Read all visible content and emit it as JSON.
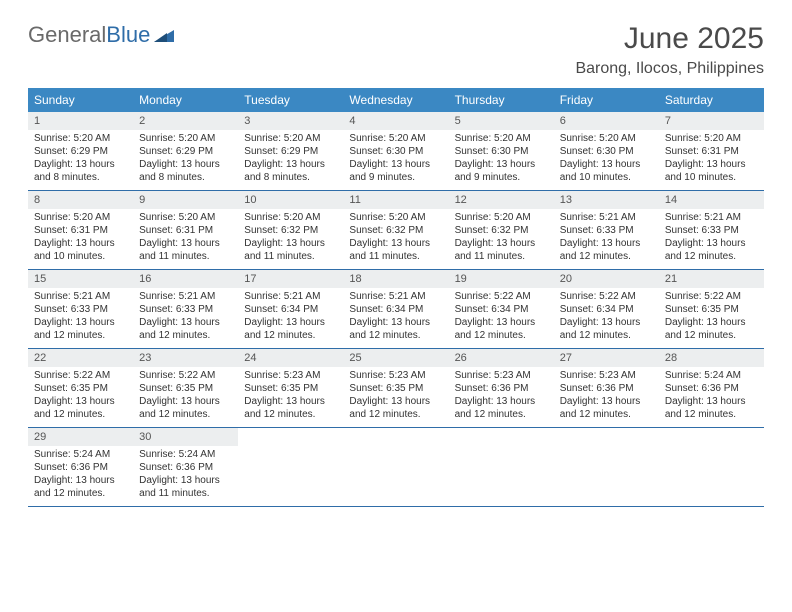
{
  "logo": {
    "text_gray": "General",
    "text_blue": "Blue"
  },
  "title": {
    "month": "June 2025",
    "location": "Barong, Ilocos, Philippines"
  },
  "colors": {
    "header_bg": "#3b88c3",
    "header_text": "#ffffff",
    "daynum_bg": "#eceeef",
    "rule": "#2f6da8",
    "body_text": "#333333"
  },
  "day_names": [
    "Sunday",
    "Monday",
    "Tuesday",
    "Wednesday",
    "Thursday",
    "Friday",
    "Saturday"
  ],
  "days": [
    {
      "n": "1",
      "sr": "Sunrise: 5:20 AM",
      "ss": "Sunset: 6:29 PM",
      "d1": "Daylight: 13 hours",
      "d2": "and 8 minutes."
    },
    {
      "n": "2",
      "sr": "Sunrise: 5:20 AM",
      "ss": "Sunset: 6:29 PM",
      "d1": "Daylight: 13 hours",
      "d2": "and 8 minutes."
    },
    {
      "n": "3",
      "sr": "Sunrise: 5:20 AM",
      "ss": "Sunset: 6:29 PM",
      "d1": "Daylight: 13 hours",
      "d2": "and 8 minutes."
    },
    {
      "n": "4",
      "sr": "Sunrise: 5:20 AM",
      "ss": "Sunset: 6:30 PM",
      "d1": "Daylight: 13 hours",
      "d2": "and 9 minutes."
    },
    {
      "n": "5",
      "sr": "Sunrise: 5:20 AM",
      "ss": "Sunset: 6:30 PM",
      "d1": "Daylight: 13 hours",
      "d2": "and 9 minutes."
    },
    {
      "n": "6",
      "sr": "Sunrise: 5:20 AM",
      "ss": "Sunset: 6:30 PM",
      "d1": "Daylight: 13 hours",
      "d2": "and 10 minutes."
    },
    {
      "n": "7",
      "sr": "Sunrise: 5:20 AM",
      "ss": "Sunset: 6:31 PM",
      "d1": "Daylight: 13 hours",
      "d2": "and 10 minutes."
    },
    {
      "n": "8",
      "sr": "Sunrise: 5:20 AM",
      "ss": "Sunset: 6:31 PM",
      "d1": "Daylight: 13 hours",
      "d2": "and 10 minutes."
    },
    {
      "n": "9",
      "sr": "Sunrise: 5:20 AM",
      "ss": "Sunset: 6:31 PM",
      "d1": "Daylight: 13 hours",
      "d2": "and 11 minutes."
    },
    {
      "n": "10",
      "sr": "Sunrise: 5:20 AM",
      "ss": "Sunset: 6:32 PM",
      "d1": "Daylight: 13 hours",
      "d2": "and 11 minutes."
    },
    {
      "n": "11",
      "sr": "Sunrise: 5:20 AM",
      "ss": "Sunset: 6:32 PM",
      "d1": "Daylight: 13 hours",
      "d2": "and 11 minutes."
    },
    {
      "n": "12",
      "sr": "Sunrise: 5:20 AM",
      "ss": "Sunset: 6:32 PM",
      "d1": "Daylight: 13 hours",
      "d2": "and 11 minutes."
    },
    {
      "n": "13",
      "sr": "Sunrise: 5:21 AM",
      "ss": "Sunset: 6:33 PM",
      "d1": "Daylight: 13 hours",
      "d2": "and 12 minutes."
    },
    {
      "n": "14",
      "sr": "Sunrise: 5:21 AM",
      "ss": "Sunset: 6:33 PM",
      "d1": "Daylight: 13 hours",
      "d2": "and 12 minutes."
    },
    {
      "n": "15",
      "sr": "Sunrise: 5:21 AM",
      "ss": "Sunset: 6:33 PM",
      "d1": "Daylight: 13 hours",
      "d2": "and 12 minutes."
    },
    {
      "n": "16",
      "sr": "Sunrise: 5:21 AM",
      "ss": "Sunset: 6:33 PM",
      "d1": "Daylight: 13 hours",
      "d2": "and 12 minutes."
    },
    {
      "n": "17",
      "sr": "Sunrise: 5:21 AM",
      "ss": "Sunset: 6:34 PM",
      "d1": "Daylight: 13 hours",
      "d2": "and 12 minutes."
    },
    {
      "n": "18",
      "sr": "Sunrise: 5:21 AM",
      "ss": "Sunset: 6:34 PM",
      "d1": "Daylight: 13 hours",
      "d2": "and 12 minutes."
    },
    {
      "n": "19",
      "sr": "Sunrise: 5:22 AM",
      "ss": "Sunset: 6:34 PM",
      "d1": "Daylight: 13 hours",
      "d2": "and 12 minutes."
    },
    {
      "n": "20",
      "sr": "Sunrise: 5:22 AM",
      "ss": "Sunset: 6:34 PM",
      "d1": "Daylight: 13 hours",
      "d2": "and 12 minutes."
    },
    {
      "n": "21",
      "sr": "Sunrise: 5:22 AM",
      "ss": "Sunset: 6:35 PM",
      "d1": "Daylight: 13 hours",
      "d2": "and 12 minutes."
    },
    {
      "n": "22",
      "sr": "Sunrise: 5:22 AM",
      "ss": "Sunset: 6:35 PM",
      "d1": "Daylight: 13 hours",
      "d2": "and 12 minutes."
    },
    {
      "n": "23",
      "sr": "Sunrise: 5:22 AM",
      "ss": "Sunset: 6:35 PM",
      "d1": "Daylight: 13 hours",
      "d2": "and 12 minutes."
    },
    {
      "n": "24",
      "sr": "Sunrise: 5:23 AM",
      "ss": "Sunset: 6:35 PM",
      "d1": "Daylight: 13 hours",
      "d2": "and 12 minutes."
    },
    {
      "n": "25",
      "sr": "Sunrise: 5:23 AM",
      "ss": "Sunset: 6:35 PM",
      "d1": "Daylight: 13 hours",
      "d2": "and 12 minutes."
    },
    {
      "n": "26",
      "sr": "Sunrise: 5:23 AM",
      "ss": "Sunset: 6:36 PM",
      "d1": "Daylight: 13 hours",
      "d2": "and 12 minutes."
    },
    {
      "n": "27",
      "sr": "Sunrise: 5:23 AM",
      "ss": "Sunset: 6:36 PM",
      "d1": "Daylight: 13 hours",
      "d2": "and 12 minutes."
    },
    {
      "n": "28",
      "sr": "Sunrise: 5:24 AM",
      "ss": "Sunset: 6:36 PM",
      "d1": "Daylight: 13 hours",
      "d2": "and 12 minutes."
    },
    {
      "n": "29",
      "sr": "Sunrise: 5:24 AM",
      "ss": "Sunset: 6:36 PM",
      "d1": "Daylight: 13 hours",
      "d2": "and 12 minutes."
    },
    {
      "n": "30",
      "sr": "Sunrise: 5:24 AM",
      "ss": "Sunset: 6:36 PM",
      "d1": "Daylight: 13 hours",
      "d2": "and 11 minutes."
    }
  ]
}
